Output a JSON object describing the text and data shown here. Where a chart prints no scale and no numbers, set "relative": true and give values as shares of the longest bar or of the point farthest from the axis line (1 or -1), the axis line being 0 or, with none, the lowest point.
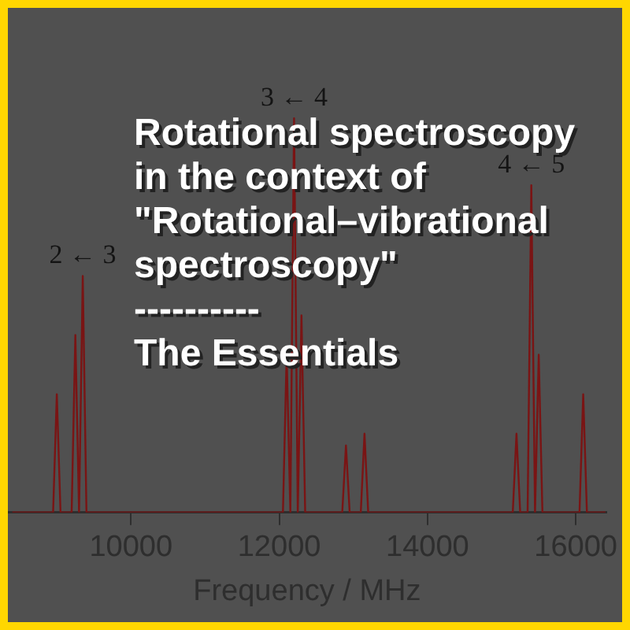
{
  "chart_data": {
    "type": "line",
    "relative": true,
    "title": "Rotational spectroscopy in the context of \"Rotational–vibrational spectroscopy\"",
    "subtitle": "----------",
    "annotations": [
      "The Essentials",
      {
        "text": "2 ← 3",
        "x": 9350,
        "y": 0.6
      },
      {
        "text": "3 ← 4",
        "x": 12200,
        "y": 1
      },
      {
        "text": "4 ← 5",
        "x": 15400,
        "y": 0.83
      }
    ],
    "xlabel": "Frequency / MHz",
    "xlim": [
      8340,
      16410
    ],
    "xticks": [
      10000,
      12000,
      14000,
      16000
    ],
    "grid": false,
    "legend": false,
    "marker": "none",
    "line_style": "solid",
    "x": [
      8400,
      8950,
      9000,
      9050,
      9200,
      9250,
      9300,
      9350,
      9400,
      12050,
      12100,
      12150,
      12200,
      12250,
      12300,
      12350,
      12850,
      12900,
      12950,
      13100,
      13150,
      13200,
      15150,
      15200,
      15250,
      15350,
      15400,
      15450,
      15500,
      15550,
      16050,
      16100,
      16150,
      16400
    ],
    "series": [
      {
        "color": "#7a1414",
        "values": [
          0,
          0,
          0.3,
          0,
          0,
          0.45,
          0,
          0.6,
          0,
          0,
          0.4,
          0,
          1,
          0,
          0.5,
          0,
          0,
          0.17,
          0,
          0,
          0.2,
          0,
          0,
          0.2,
          0,
          0,
          0.83,
          0,
          0.4,
          0,
          0,
          0.3,
          0,
          0
        ]
      }
    ]
  }
}
